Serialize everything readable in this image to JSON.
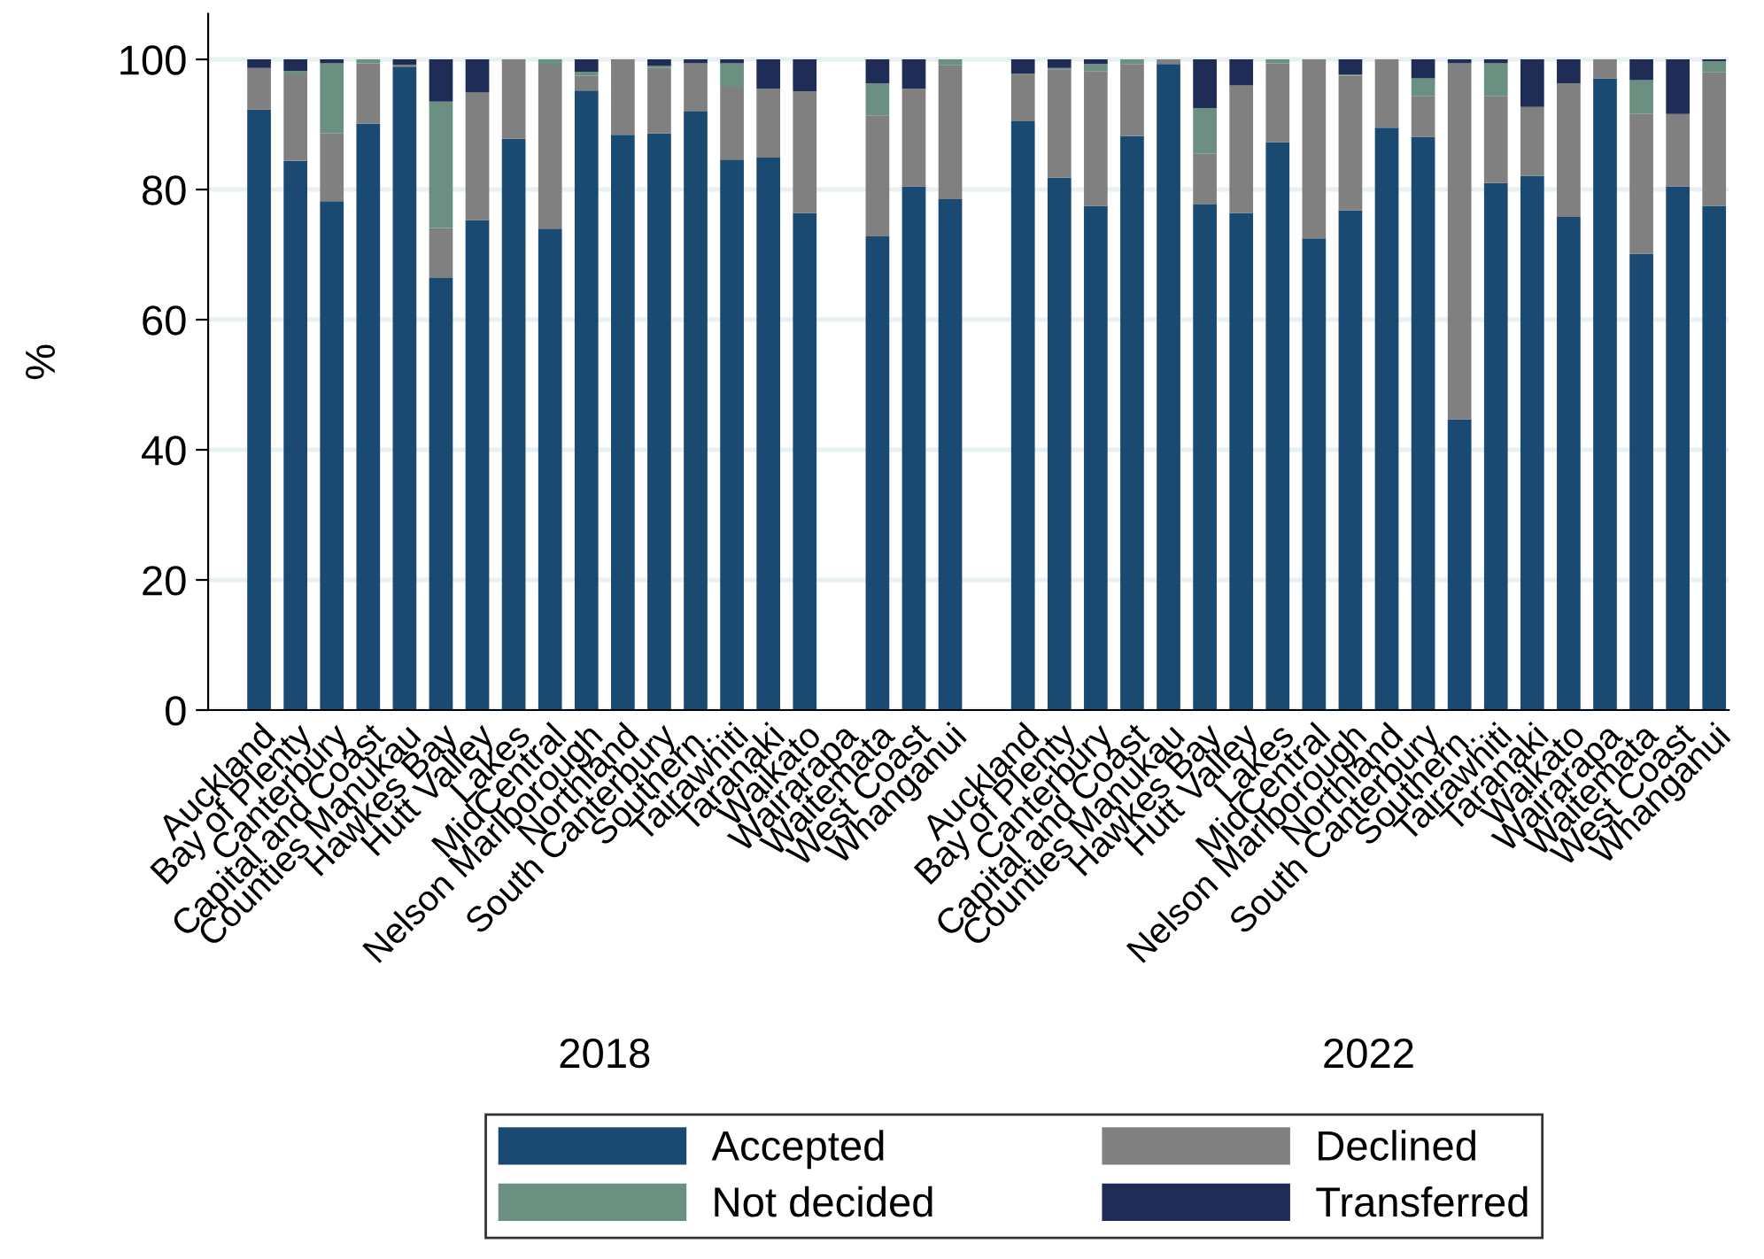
{
  "chart_data": {
    "type": "bar",
    "stacked": true,
    "ylabel": "%",
    "ylim": [
      0,
      107
    ],
    "yticks": [
      0,
      20,
      40,
      60,
      80,
      100
    ],
    "grid": "y",
    "legend": "bottom",
    "categories": [
      "Auckland",
      "Bay of Plenty",
      "Canterbury",
      "Capital and Coast",
      "Counties Manukau",
      "Hawkes Bay",
      "Hutt Valley",
      "Lakes",
      "MidCentral",
      "Nelson Marlborough",
      "Northland",
      "South Canterbury",
      "Southern.",
      "Tairawhiti",
      "Taranaki",
      "Waikato",
      "Wairarapa",
      "Waitemata",
      "West Coast",
      "Whanganui",
      null,
      "Auckland",
      "Bay of Plenty",
      "Canterbury",
      "Capital and Coast",
      "Counties Manukau",
      "Hawkes Bay",
      "Hutt Valley",
      "Lakes",
      "MidCentral",
      "Nelson Marlborough",
      "Northland",
      "South Canterbury",
      "Southern.",
      "Tairawhiti",
      "Taranaki",
      "Waikato",
      "Wairarapa",
      "Waitemata",
      "West Coast",
      "Whanganui"
    ],
    "series": [
      {
        "name": "Accepted",
        "color": "#1a4a72",
        "values": [
          92.3,
          84.4,
          78.2,
          90.1,
          98.9,
          66.4,
          75.3,
          87.8,
          74.0,
          95.2,
          88.4,
          88.6,
          92.0,
          84.6,
          84.9,
          76.4,
          null,
          72.8,
          80.5,
          78.5,
          null,
          90.5,
          81.8,
          77.5,
          88.2,
          99.3,
          77.7,
          76.4,
          87.3,
          72.5,
          76.8,
          89.5,
          88.1,
          44.7,
          81.0,
          82.1,
          75.8,
          97.1,
          70.1,
          80.5,
          77.5
        ]
      },
      {
        "name": "Declined",
        "color": "#808080",
        "values": [
          6.4,
          13.3,
          10.4,
          9.3,
          0.3,
          7.7,
          19.6,
          12.2,
          25.2,
          2.3,
          11.6,
          10.1,
          7.4,
          11.2,
          10.6,
          18.7,
          null,
          18.6,
          15.0,
          20.6,
          null,
          7.3,
          16.6,
          20.7,
          11.1,
          0.7,
          7.8,
          19.6,
          12.1,
          27.5,
          20.7,
          10.5,
          6.3,
          54.7,
          13.4,
          10.6,
          20.5,
          2.9,
          21.5,
          11.1,
          20.5
        ]
      },
      {
        "name": "Not decided",
        "color": "#6b8f80",
        "values": [
          0,
          0.5,
          10.8,
          0.6,
          0,
          19.4,
          0,
          0,
          0.8,
          0.6,
          0,
          0.3,
          0,
          3.6,
          0,
          0,
          null,
          4.9,
          0,
          0.9,
          null,
          0,
          0.3,
          1.1,
          0.7,
          0,
          7.0,
          0,
          0.6,
          0,
          0.2,
          0,
          2.7,
          0,
          5.0,
          0,
          0,
          0,
          5.2,
          0,
          1.7
        ]
      },
      {
        "name": "Transferred",
        "color": "#1f2c55",
        "values": [
          1.3,
          1.8,
          0.6,
          0,
          0.8,
          6.5,
          5.1,
          0,
          0,
          1.9,
          0,
          1.0,
          0.6,
          0.6,
          4.5,
          4.9,
          null,
          3.7,
          4.5,
          0,
          null,
          2.2,
          1.3,
          0.7,
          0,
          0,
          7.5,
          4.0,
          0,
          0,
          2.3,
          0,
          2.9,
          0.6,
          0.6,
          7.3,
          3.7,
          0,
          3.2,
          8.4,
          0.3
        ]
      }
    ],
    "annotations": [
      "2018",
      "2022"
    ]
  }
}
